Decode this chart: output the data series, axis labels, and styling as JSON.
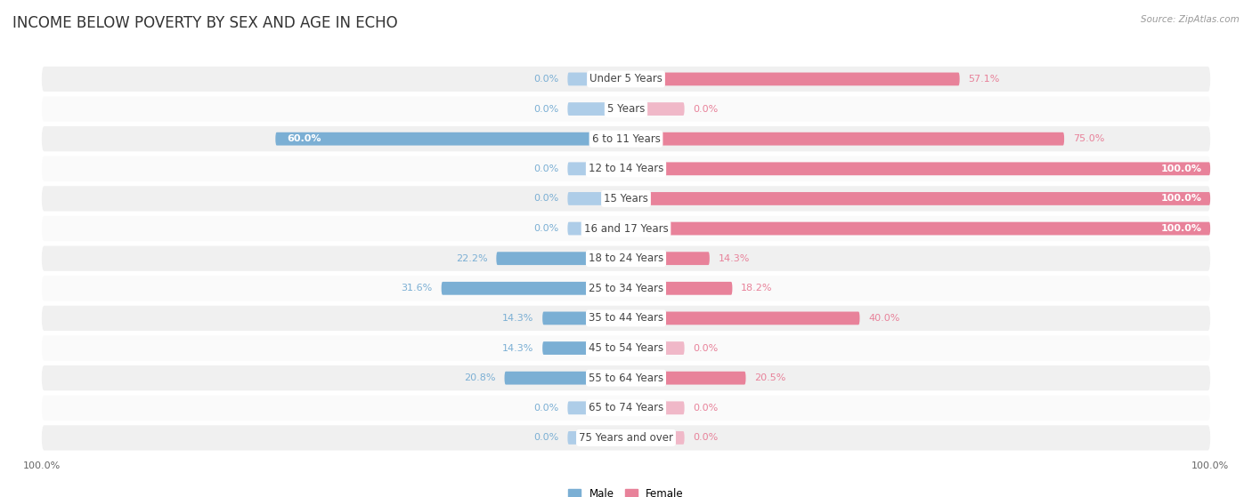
{
  "title": "INCOME BELOW POVERTY BY SEX AND AGE IN ECHO",
  "source": "Source: ZipAtlas.com",
  "categories": [
    "Under 5 Years",
    "5 Years",
    "6 to 11 Years",
    "12 to 14 Years",
    "15 Years",
    "16 and 17 Years",
    "18 to 24 Years",
    "25 to 34 Years",
    "35 to 44 Years",
    "45 to 54 Years",
    "55 to 64 Years",
    "65 to 74 Years",
    "75 Years and over"
  ],
  "male_values": [
    0.0,
    0.0,
    60.0,
    0.0,
    0.0,
    0.0,
    22.2,
    31.6,
    14.3,
    14.3,
    20.8,
    0.0,
    0.0
  ],
  "female_values": [
    57.1,
    0.0,
    75.0,
    100.0,
    100.0,
    100.0,
    14.3,
    18.2,
    40.0,
    0.0,
    20.5,
    0.0,
    0.0
  ],
  "male_color": "#7bafd4",
  "female_color": "#e8829a",
  "male_stub_color": "#aecde8",
  "female_stub_color": "#f0b8c8",
  "male_label": "Male",
  "female_label": "Female",
  "male_text_color": "#7bafd4",
  "female_text_color": "#e8829a",
  "row_bg_odd": "#f0f0f0",
  "row_bg_even": "#fafafa",
  "max_val": 100.0,
  "stub_val": 10.0,
  "title_fontsize": 12,
  "label_fontsize": 8.5,
  "value_fontsize": 8,
  "tick_fontsize": 8
}
